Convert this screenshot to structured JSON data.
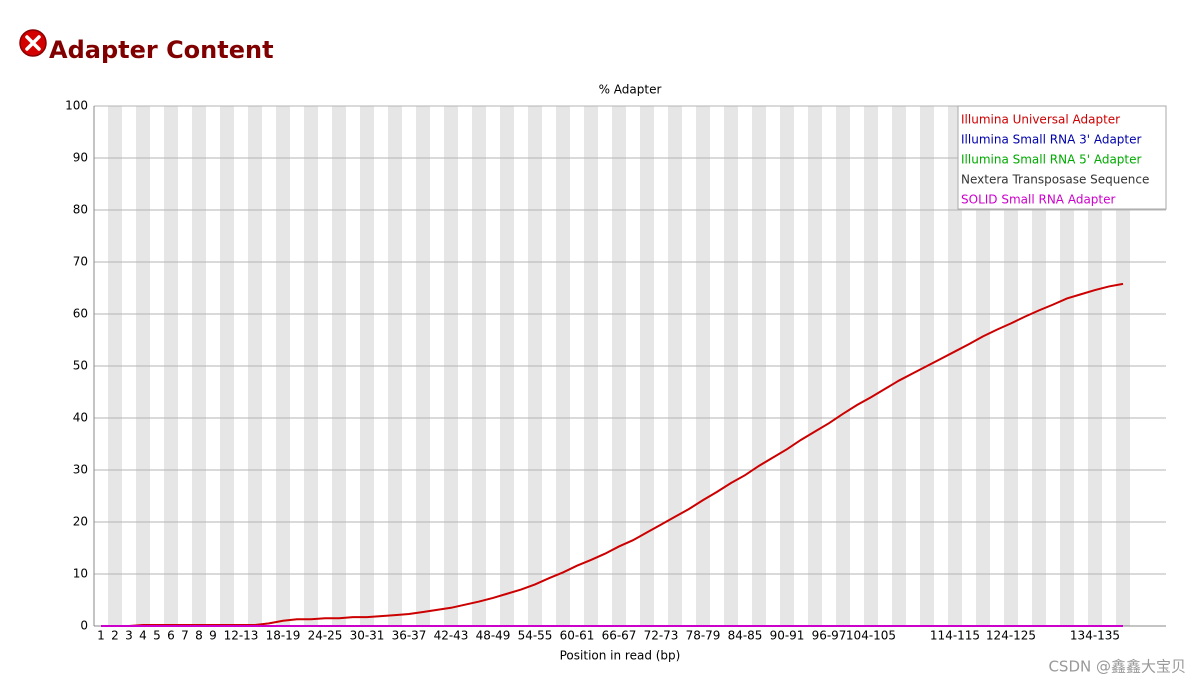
{
  "header": {
    "title": "Adapter Content"
  },
  "watermark": "CSDN @鑫鑫大宝贝",
  "chart_data": {
    "type": "line",
    "title": "% Adapter",
    "x_label": "Position in read (bp)",
    "categories": [
      "1",
      "2",
      "3",
      "4",
      "5",
      "6",
      "7",
      "8",
      "9",
      null,
      "12-13",
      null,
      null,
      "18-19",
      null,
      null,
      "24-25",
      null,
      null,
      "30-31",
      null,
      null,
      "36-37",
      null,
      null,
      "42-43",
      null,
      null,
      "48-49",
      null,
      null,
      "54-55",
      null,
      null,
      "60-61",
      null,
      null,
      "66-67",
      null,
      null,
      "72-73",
      null,
      null,
      "78-79",
      null,
      null,
      "84-85",
      null,
      null,
      "90-91",
      null,
      null,
      "96-97",
      null,
      null,
      "104-105",
      null,
      null,
      null,
      null,
      null,
      "114-115",
      null,
      null,
      null,
      "124-125",
      null,
      null,
      null,
      null,
      null,
      "134-135",
      null,
      null
    ],
    "series": [
      {
        "name": "Illumina Universal Adapter",
        "color": "#cc0000",
        "values": [
          0,
          0,
          0,
          0.2,
          0.2,
          0.2,
          0.2,
          0.2,
          0.2,
          0.2,
          0.2,
          0.2,
          0.5,
          1.0,
          1.3,
          1.3,
          1.5,
          1.5,
          1.7,
          1.7,
          1.9,
          2.1,
          2.3,
          2.7,
          3.1,
          3.5,
          4.1,
          4.7,
          5.4,
          6.2,
          7.0,
          8.0,
          9.2,
          10.3,
          11.6,
          12.7,
          13.9,
          15.3,
          16.5,
          18.0,
          19.5,
          21.0,
          22.5,
          24.2,
          25.8,
          27.5,
          29.0,
          30.8,
          32.4,
          34.0,
          35.8,
          37.4,
          39.0,
          40.8,
          42.5,
          44.0,
          45.6,
          47.2,
          48.6,
          50.0,
          51.4,
          52.8,
          54.2,
          55.7,
          57.0,
          58.2,
          59.5,
          60.7,
          61.8,
          63.0,
          63.8,
          64.6,
          65.3,
          65.8
        ]
      },
      {
        "name": "Illumina Small RNA 3' Adapter",
        "color": "#0000aa",
        "values": [
          0,
          0,
          0,
          0,
          0,
          0,
          0,
          0,
          0,
          0,
          0,
          0,
          0,
          0,
          0,
          0,
          0,
          0,
          0,
          0,
          0,
          0,
          0,
          0,
          0,
          0,
          0,
          0,
          0,
          0,
          0,
          0,
          0,
          0,
          0,
          0,
          0,
          0,
          0,
          0,
          0,
          0,
          0,
          0,
          0,
          0,
          0,
          0,
          0,
          0,
          0,
          0,
          0,
          0,
          0,
          0,
          0,
          0,
          0,
          0,
          0,
          0,
          0,
          0,
          0,
          0,
          0,
          0,
          0,
          0,
          0,
          0,
          0,
          0
        ]
      },
      {
        "name": "Illumina Small RNA 5' Adapter",
        "color": "#00aa00",
        "values": [
          0,
          0,
          0,
          0,
          0,
          0,
          0,
          0,
          0,
          0,
          0,
          0,
          0,
          0,
          0,
          0,
          0,
          0,
          0,
          0,
          0,
          0,
          0,
          0,
          0,
          0,
          0,
          0,
          0,
          0,
          0,
          0,
          0,
          0,
          0,
          0,
          0,
          0,
          0,
          0,
          0,
          0,
          0,
          0,
          0,
          0,
          0,
          0,
          0,
          0,
          0,
          0,
          0,
          0,
          0,
          0,
          0,
          0,
          0,
          0,
          0,
          0,
          0,
          0,
          0,
          0,
          0,
          0,
          0,
          0,
          0,
          0,
          0,
          0
        ]
      },
      {
        "name": "Nextera Transposase Sequence",
        "color": "#333333",
        "values": [
          0,
          0,
          0,
          0,
          0,
          0,
          0,
          0,
          0,
          0,
          0,
          0,
          0,
          0,
          0,
          0,
          0,
          0,
          0,
          0,
          0,
          0,
          0,
          0,
          0,
          0,
          0,
          0,
          0,
          0,
          0,
          0,
          0,
          0,
          0,
          0,
          0,
          0,
          0,
          0,
          0,
          0,
          0,
          0,
          0,
          0,
          0,
          0,
          0,
          0,
          0,
          0,
          0,
          0,
          0,
          0,
          0,
          0,
          0,
          0,
          0,
          0,
          0,
          0,
          0,
          0,
          0,
          0,
          0,
          0,
          0,
          0,
          0,
          0
        ]
      },
      {
        "name": "SOLID Small RNA Adapter",
        "color": "#cc00cc",
        "values": [
          0,
          0,
          0,
          0,
          0,
          0,
          0,
          0,
          0,
          0,
          0,
          0,
          0,
          0,
          0,
          0,
          0,
          0,
          0,
          0,
          0,
          0,
          0,
          0,
          0,
          0,
          0,
          0,
          0,
          0,
          0,
          0,
          0,
          0,
          0,
          0,
          0,
          0,
          0,
          0,
          0,
          0,
          0,
          0,
          0,
          0,
          0,
          0,
          0,
          0,
          0,
          0,
          0,
          0,
          0,
          0,
          0,
          0,
          0,
          0,
          0,
          0,
          0,
          0,
          0,
          0,
          0,
          0,
          0,
          0,
          0,
          0,
          0,
          0
        ]
      }
    ],
    "ylim": [
      0,
      100
    ],
    "yticks": [
      0,
      10,
      20,
      30,
      40,
      50,
      60,
      70,
      80,
      90,
      100
    ],
    "grid": true,
    "legend": "top-right"
  }
}
